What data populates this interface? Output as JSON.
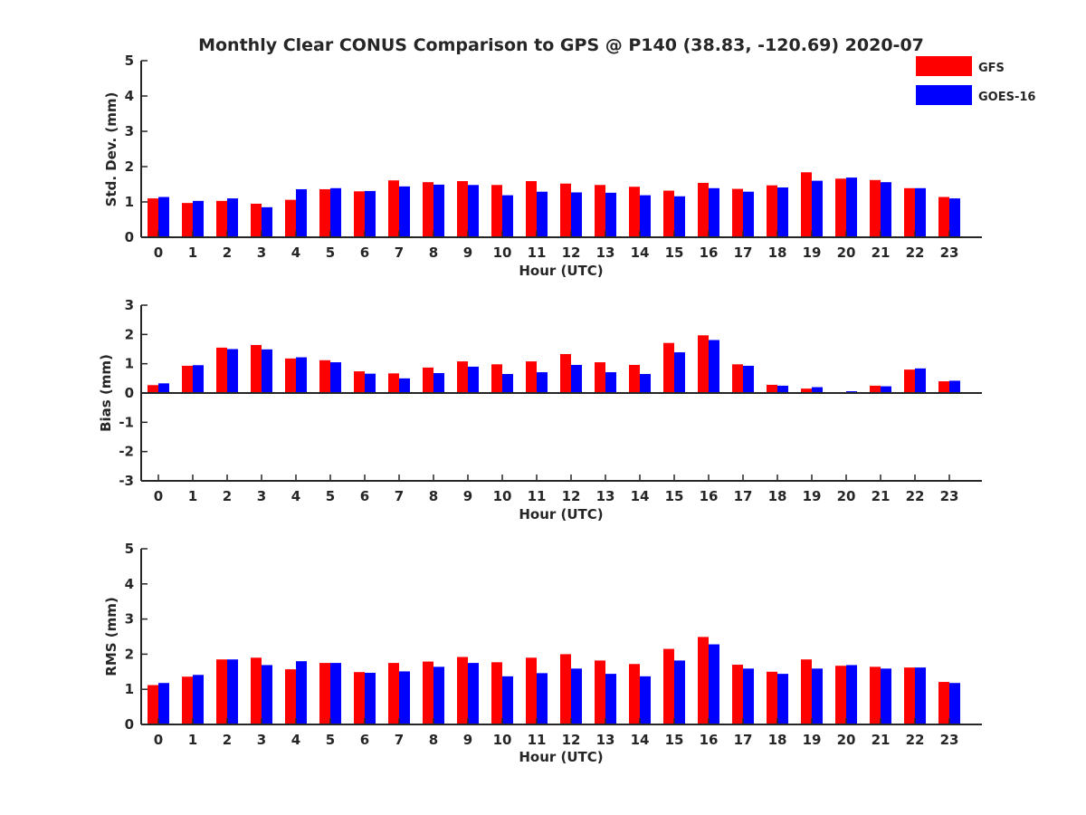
{
  "chart_data": {
    "type": "bar",
    "title": "Monthly Clear CONUS Comparison to GPS @ P140 (38.83, -120.69) 2020-07",
    "legend": {
      "placement": "top-right",
      "entries": [
        {
          "name": "GFS",
          "color": "#ff0000"
        },
        {
          "name": "GOES-16",
          "color": "#0000ff"
        }
      ]
    },
    "categories": [
      "0",
      "1",
      "2",
      "3",
      "4",
      "5",
      "6",
      "7",
      "8",
      "9",
      "10",
      "11",
      "12",
      "13",
      "14",
      "15",
      "16",
      "17",
      "18",
      "19",
      "20",
      "21",
      "22",
      "23"
    ],
    "panels": [
      {
        "id": "std",
        "ylabel": "Std. Dev. (mm)",
        "xlabel": "Hour (UTC)",
        "ylim": [
          0,
          5
        ],
        "yticks": [
          "0",
          "1",
          "2",
          "3",
          "4",
          "5"
        ],
        "series": [
          {
            "name": "GFS",
            "color": "#ff0000",
            "values": [
              1.1,
              0.97,
              1.03,
              0.95,
              1.06,
              1.36,
              1.3,
              1.61,
              1.56,
              1.59,
              1.48,
              1.59,
              1.52,
              1.48,
              1.43,
              1.32,
              1.54,
              1.37,
              1.47,
              1.84,
              1.66,
              1.62,
              1.39,
              1.14
            ]
          },
          {
            "name": "GOES-16",
            "color": "#0000ff",
            "values": [
              1.14,
              1.03,
              1.1,
              0.85,
              1.36,
              1.39,
              1.31,
              1.44,
              1.49,
              1.48,
              1.19,
              1.29,
              1.27,
              1.26,
              1.19,
              1.16,
              1.39,
              1.29,
              1.41,
              1.6,
              1.69,
              1.56,
              1.39,
              1.1
            ]
          }
        ]
      },
      {
        "id": "bias",
        "ylabel": "Bias (mm)",
        "xlabel": "Hour (UTC)",
        "ylim": [
          -3,
          3
        ],
        "yticks": [
          "-3",
          "-2",
          "-1",
          "0",
          "1",
          "2",
          "3"
        ],
        "series": [
          {
            "name": "GFS",
            "color": "#ff0000",
            "values": [
              0.27,
              0.93,
              1.55,
              1.64,
              1.18,
              1.12,
              0.74,
              0.67,
              0.87,
              1.08,
              0.98,
              1.08,
              1.33,
              1.05,
              0.96,
              1.71,
              1.97,
              0.98,
              0.28,
              0.15,
              0.03,
              0.25,
              0.8,
              0.4
            ]
          },
          {
            "name": "GOES-16",
            "color": "#0000ff",
            "values": [
              0.33,
              0.95,
              1.5,
              1.49,
              1.22,
              1.05,
              0.66,
              0.5,
              0.68,
              0.9,
              0.65,
              0.71,
              0.96,
              0.71,
              0.65,
              1.39,
              1.81,
              0.93,
              0.25,
              0.2,
              0.06,
              0.23,
              0.84,
              0.42
            ]
          }
        ]
      },
      {
        "id": "rms",
        "ylabel": "RMS (mm)",
        "xlabel": "Hour (UTC)",
        "ylim": [
          0,
          5
        ],
        "yticks": [
          "0",
          "1",
          "2",
          "3",
          "4",
          "5"
        ],
        "series": [
          {
            "name": "GFS",
            "color": "#ff0000",
            "values": [
              1.12,
              1.36,
              1.85,
              1.9,
              1.57,
              1.75,
              1.49,
              1.75,
              1.79,
              1.92,
              1.77,
              1.9,
              2.0,
              1.82,
              1.72,
              2.15,
              2.49,
              1.7,
              1.5,
              1.85,
              1.67,
              1.64,
              1.62,
              1.21
            ]
          },
          {
            "name": "GOES-16",
            "color": "#0000ff",
            "values": [
              1.18,
              1.41,
              1.85,
              1.69,
              1.8,
              1.75,
              1.47,
              1.51,
              1.64,
              1.75,
              1.37,
              1.46,
              1.59,
              1.44,
              1.37,
              1.82,
              2.28,
              1.59,
              1.44,
              1.59,
              1.69,
              1.59,
              1.62,
              1.18
            ]
          }
        ]
      }
    ]
  }
}
